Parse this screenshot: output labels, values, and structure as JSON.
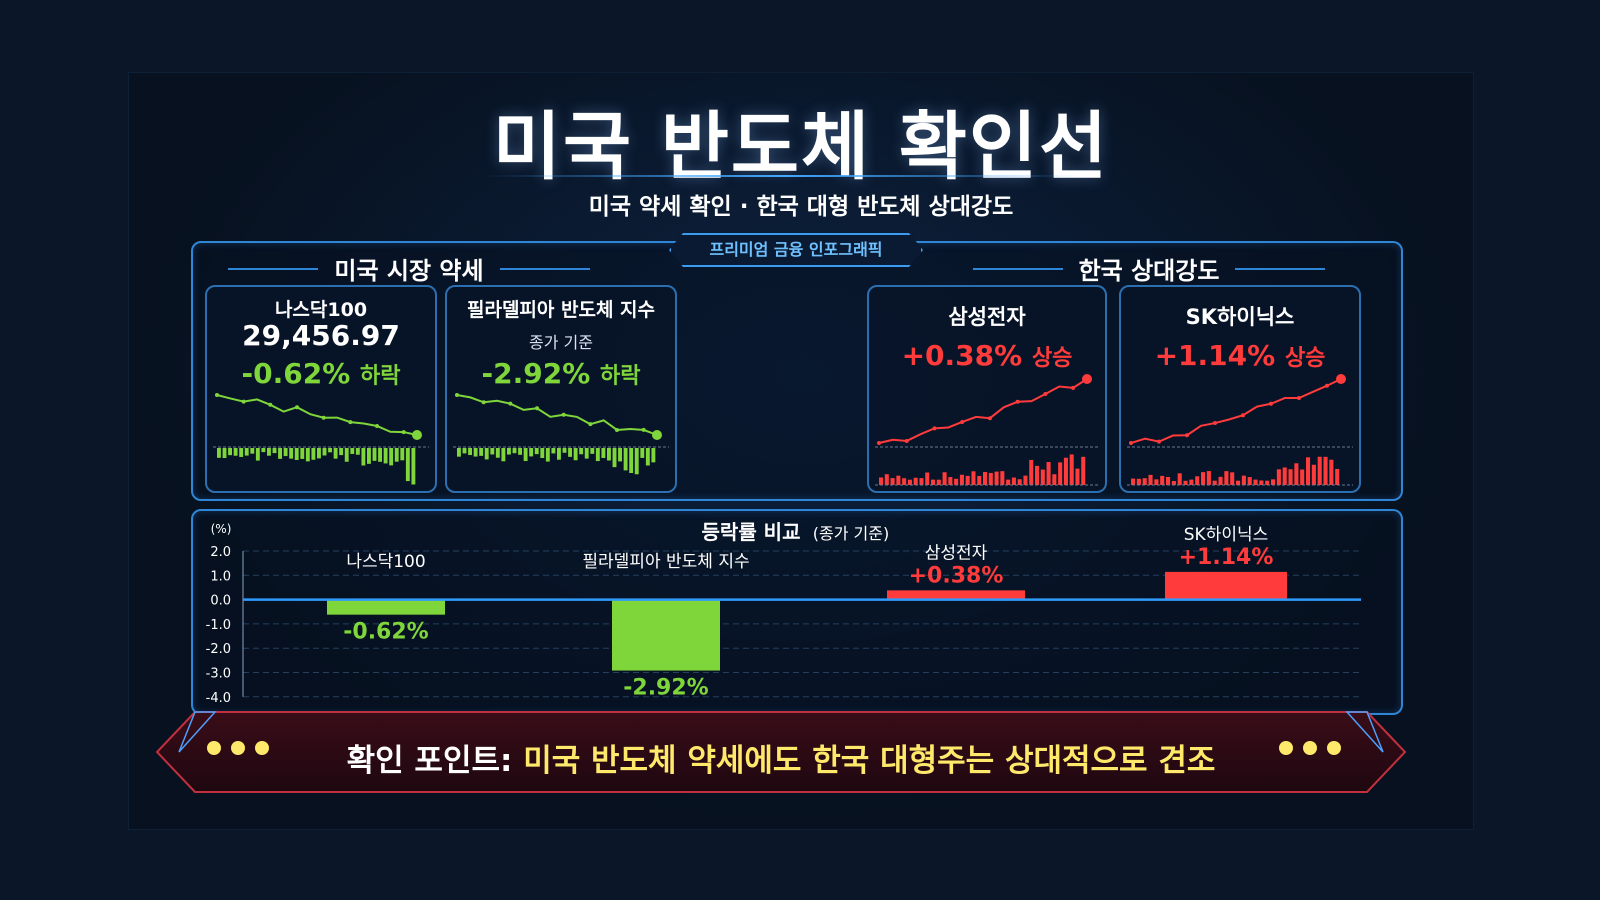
{
  "title": "미국 반도체 확인선",
  "subtitle": "미국 약세 확인 · 한국 대형 반도체 상대강도",
  "badge": "프리미엄 금융 인포그래픽",
  "left_section": "미국 시장 약세",
  "right_section": "한국 상대강도",
  "colors": {
    "down": "#7fd63a",
    "up": "#ff3b3b",
    "accent": "#2f86d6",
    "highlight": "#ffe96b"
  },
  "cards": [
    {
      "name": "나스닥100",
      "value": "29,456.97",
      "change": "-0.62%",
      "direction": "하락",
      "trend": "down"
    },
    {
      "name": "필라델피아 반도체 지수",
      "note": "종가 기준",
      "change": "-2.92%",
      "direction": "하락",
      "trend": "down"
    },
    {
      "name": "삼성전자",
      "change": "+0.38%",
      "direction": "상승",
      "trend": "up"
    },
    {
      "name": "SK하이닉스",
      "change": "+1.14%",
      "direction": "상승",
      "trend": "up"
    }
  ],
  "chart_data": {
    "type": "bar",
    "title": "등락률 비교",
    "title_note": "(종가 기준)",
    "ylabel": "(%)",
    "ylim": [
      -4.0,
      2.0
    ],
    "yticks": [
      "2.0",
      "1.0",
      "0.0",
      "-1.0",
      "-2.0",
      "-3.0",
      "-4.0"
    ],
    "grid": true,
    "categories": [
      "나스닥100",
      "필라델피아 반도체 지수",
      "삼성전자",
      "SK하이닉스"
    ],
    "values": [
      -0.62,
      -2.92,
      0.38,
      1.14
    ],
    "value_labels": [
      "-0.62%",
      "-2.92%",
      "+0.38%",
      "+1.14%"
    ]
  },
  "banner": {
    "label": "확인 포인트:",
    "message": "미국 반도체 약세에도 한국 대형주는 상대적으로 견조"
  }
}
